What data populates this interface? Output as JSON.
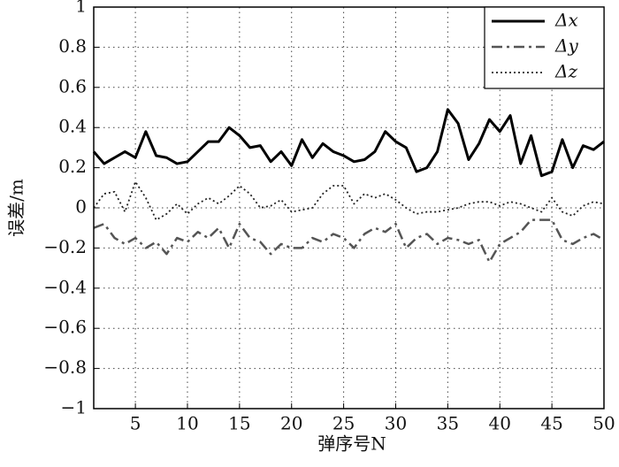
{
  "chart_data": {
    "type": "line",
    "x_label": "弹序号N",
    "y_label": "误差/m",
    "x": [
      1,
      2,
      3,
      4,
      5,
      6,
      7,
      8,
      9,
      10,
      11,
      12,
      13,
      14,
      15,
      16,
      17,
      18,
      19,
      20,
      21,
      22,
      23,
      24,
      25,
      26,
      27,
      28,
      29,
      30,
      31,
      32,
      33,
      34,
      35,
      36,
      37,
      38,
      39,
      40,
      41,
      42,
      43,
      44,
      45,
      46,
      47,
      48,
      49,
      50
    ],
    "series": [
      {
        "name": "Δx",
        "color": "#000000",
        "style": "solid",
        "width": 3,
        "values": [
          0.28,
          0.22,
          0.25,
          0.28,
          0.25,
          0.38,
          0.26,
          0.25,
          0.22,
          0.23,
          0.28,
          0.33,
          0.33,
          0.4,
          0.36,
          0.3,
          0.31,
          0.23,
          0.28,
          0.21,
          0.34,
          0.25,
          0.32,
          0.28,
          0.26,
          0.23,
          0.24,
          0.28,
          0.38,
          0.33,
          0.3,
          0.18,
          0.2,
          0.28,
          0.49,
          0.42,
          0.24,
          0.32,
          0.44,
          0.38,
          0.46,
          0.22,
          0.36,
          0.16,
          0.18,
          0.34,
          0.2,
          0.31,
          0.29,
          0.33
        ]
      },
      {
        "name": "Δy",
        "color": "#555555",
        "style": "dashdot",
        "width": 2.5,
        "values": [
          -0.1,
          -0.08,
          -0.15,
          -0.18,
          -0.15,
          -0.2,
          -0.17,
          -0.23,
          -0.15,
          -0.17,
          -0.12,
          -0.15,
          -0.1,
          -0.2,
          -0.08,
          -0.15,
          -0.17,
          -0.23,
          -0.18,
          -0.2,
          -0.2,
          -0.15,
          -0.17,
          -0.13,
          -0.15,
          -0.2,
          -0.13,
          -0.1,
          -0.12,
          -0.08,
          -0.2,
          -0.15,
          -0.13,
          -0.18,
          -0.15,
          -0.16,
          -0.18,
          -0.16,
          -0.27,
          -0.18,
          -0.15,
          -0.12,
          -0.06,
          -0.06,
          -0.06,
          -0.16,
          -0.18,
          -0.15,
          -0.13,
          -0.16
        ]
      },
      {
        "name": "Δz",
        "color": "#222222",
        "style": "dotted",
        "width": 1.8,
        "values": [
          0.0,
          0.07,
          0.08,
          -0.02,
          0.13,
          0.05,
          -0.06,
          -0.03,
          0.02,
          -0.03,
          0.02,
          0.05,
          0.02,
          0.06,
          0.11,
          0.07,
          0.0,
          0.01,
          0.04,
          -0.02,
          -0.01,
          0.0,
          0.07,
          0.11,
          0.11,
          0.02,
          0.07,
          0.05,
          0.07,
          0.04,
          0.0,
          -0.03,
          -0.02,
          -0.02,
          -0.01,
          0.0,
          0.02,
          0.03,
          0.03,
          0.01,
          0.03,
          0.02,
          0.0,
          -0.02,
          0.05,
          -0.02,
          -0.04,
          0.01,
          0.03,
          0.02
        ]
      }
    ],
    "xlim": [
      1,
      50
    ],
    "xticks": [
      5,
      10,
      15,
      20,
      25,
      30,
      35,
      40,
      45,
      50
    ],
    "ylim": [
      -1,
      1
    ],
    "yticks": [
      {
        "value": -1,
        "label": "−1"
      },
      {
        "value": -0.8,
        "label": "−0.8"
      },
      {
        "value": -0.6,
        "label": "−0.6"
      },
      {
        "value": -0.4,
        "label": "−0.4"
      },
      {
        "value": -0.2,
        "label": "−0.2"
      },
      0,
      0.2,
      0.4,
      0.6,
      0.8,
      1
    ],
    "grid": true,
    "legend": "upper-right"
  }
}
